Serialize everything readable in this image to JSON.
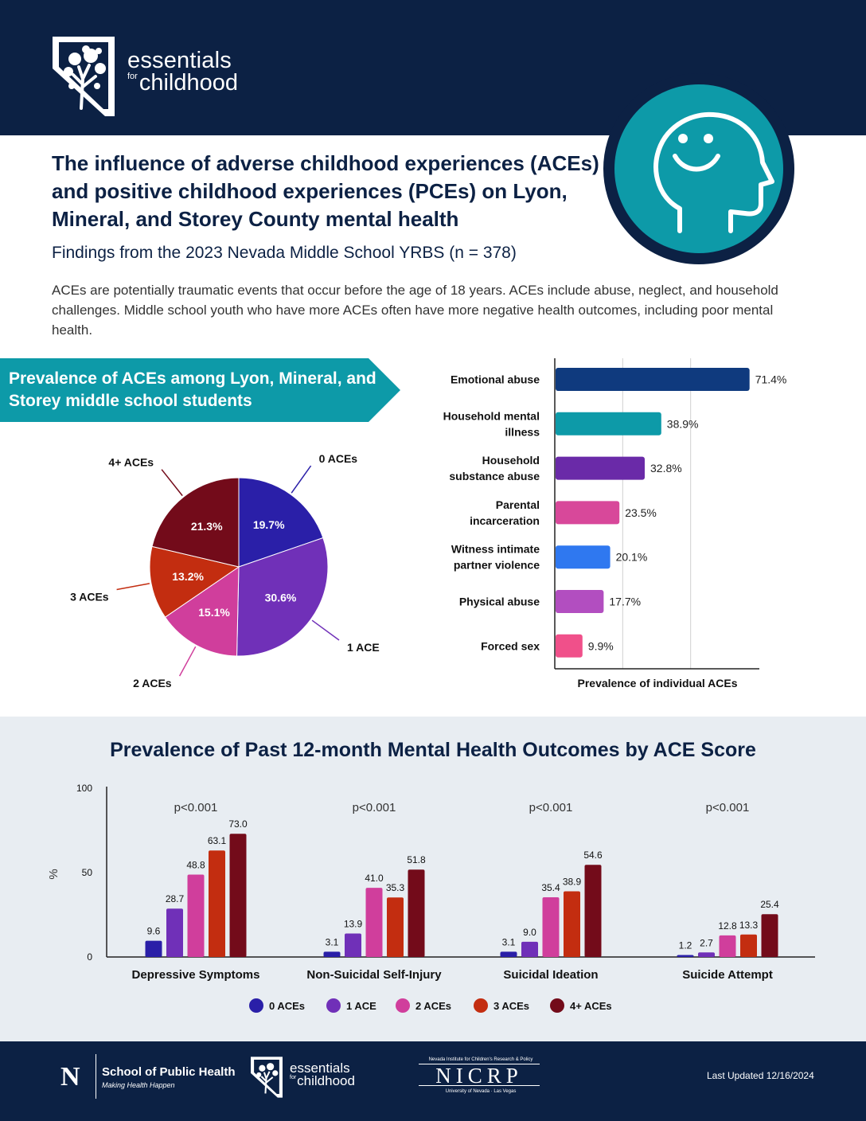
{
  "header": {
    "logo_line1": "essentials",
    "logo_for": "for",
    "logo_line2": "childhood"
  },
  "title": "The influence of adverse childhood experiences (ACEs) and positive childhood experiences (PCEs) on Lyon, Mineral, and Storey County mental health",
  "subtitle": "Findings from the 2023 Nevada Middle School YRBS (n = 378)",
  "intro": "ACEs are potentially traumatic events that occur before the age of 18 years. ACEs include abuse, neglect, and household challenges. Middle school youth who have more ACEs often have more negative health outcomes, including poor mental health.",
  "banner": "Prevalence of ACEs among Lyon, Mineral, and Storey middle school students",
  "colors": {
    "navy": "#0c2144",
    "teal": "#0d9aa8",
    "ace0": "#2a1fa8",
    "ace1": "#7030b8",
    "ace2": "#d03e9c",
    "ace3": "#c32d10",
    "ace4": "#730b1a"
  },
  "chart_data": [
    {
      "type": "pie",
      "categories": [
        "0 ACEs",
        "1 ACE",
        "2 ACEs",
        "3 ACEs",
        "4+ ACEs"
      ],
      "values": [
        19.7,
        30.6,
        15.1,
        13.2,
        21.3
      ],
      "value_labels": [
        "19.7%",
        "30.6%",
        "15.1%",
        "13.2%",
        "21.3%"
      ],
      "colors": [
        "#2a1fa8",
        "#7030b8",
        "#d03e9c",
        "#c32d10",
        "#730b1a"
      ]
    },
    {
      "type": "bar",
      "orientation": "horizontal",
      "categories": [
        [
          "Emotional abuse"
        ],
        [
          "Household mental",
          "illness"
        ],
        [
          "Household",
          "substance abuse"
        ],
        [
          "Parental",
          "incarceration"
        ],
        [
          "Witness intimate",
          "partner violence"
        ],
        [
          "Physical abuse"
        ],
        [
          "Forced sex"
        ]
      ],
      "values": [
        71.4,
        38.9,
        32.8,
        23.5,
        20.1,
        17.7,
        9.9
      ],
      "value_labels": [
        "71.4%",
        "38.9%",
        "32.8%",
        "23.5%",
        "20.1%",
        "17.7%",
        "9.9%"
      ],
      "colors": [
        "#0f3a7e",
        "#0d9aa8",
        "#6a2aa8",
        "#d8489a",
        "#2f78f0",
        "#b24ec0",
        "#f0508a"
      ],
      "xlabel": "Prevalence of individual ACEs",
      "xlim": [
        0,
        75
      ],
      "grid": true
    },
    {
      "type": "bar",
      "title": "Prevalence of Past 12-month Mental Health Outcomes by ACE Score",
      "ylabel": "%",
      "ylim": [
        0,
        100
      ],
      "yticks": [
        "0",
        "50",
        "100"
      ],
      "categories": [
        "Depressive Symptoms",
        "Non-Suicidal Self-Injury",
        "Suicidal Ideation",
        "Suicide Attempt"
      ],
      "annotations": [
        "p<0.001",
        "p<0.001",
        "p<0.001",
        "p<0.001"
      ],
      "series": [
        {
          "name": "0 ACEs",
          "color": "#2a1fa8",
          "values": [
            9.6,
            3.1,
            3.1,
            1.2
          ],
          "labels": [
            "9.6",
            "3.1",
            "3.1",
            "1.2"
          ]
        },
        {
          "name": "1 ACE",
          "color": "#7030b8",
          "values": [
            28.7,
            13.9,
            9.0,
            2.7
          ],
          "labels": [
            "28.7",
            "13.9",
            "9.0",
            "2.7"
          ]
        },
        {
          "name": "2 ACEs",
          "color": "#d03e9c",
          "values": [
            48.8,
            41.0,
            35.4,
            12.8
          ],
          "labels": [
            "48.8",
            "41.0",
            "35.4",
            "12.8"
          ]
        },
        {
          "name": "3 ACEs",
          "color": "#c32d10",
          "values": [
            63.1,
            35.3,
            38.9,
            13.3
          ],
          "labels": [
            "63.1",
            "35.3",
            "38.9",
            "13.3"
          ]
        },
        {
          "name": "4+ ACEs",
          "color": "#730b1a",
          "values": [
            73.0,
            51.8,
            54.6,
            25.4
          ],
          "labels": [
            "73.0",
            "51.8",
            "54.6",
            "25.4"
          ]
        }
      ],
      "legend": "bottom"
    }
  ],
  "footer": {
    "unr_letter": "N",
    "unr_name": "School of Public Health",
    "unr_tagline": "Making Health Happen",
    "efc_line1": "essentials",
    "efc_for": "for",
    "efc_line2": "childhood",
    "nicrp_top": "Nevada Institute for Children's Research & Policy",
    "nicrp_name": "NICRP",
    "nicrp_bottom": "University of Nevada · Las Vegas",
    "last_updated": "Last Updated 12/16/2024"
  }
}
